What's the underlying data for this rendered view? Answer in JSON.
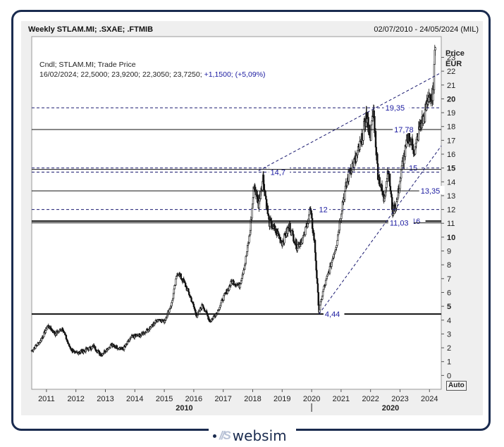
{
  "header": {
    "title": "Weekly STLAM.MI; .SXAE; .FTMIB",
    "date_range": "02/07/2010 - 24/05/2024 (MIL)"
  },
  "info": {
    "line1": "Cndl; STLAM.MI; Trade Price",
    "line2_values": "16/02/2024; 22,5000; 23,9200; 22,3050; 23,7250;",
    "line2_change": "+1,1500; (+5,09%)"
  },
  "axis": {
    "unit_line1": "Price",
    "unit_line2": "EUR",
    "auto_label": "Auto"
  },
  "logo": {
    "mark": "//S",
    "text": "websim"
  },
  "colors": {
    "frame": "#1a2b4f",
    "panel": "#efefef",
    "plot_bg": "#ffffff",
    "candles": "#111111",
    "annotation": "#1a1aa0"
  },
  "chart_data": {
    "type": "candlestick",
    "series_name": "STLAM.MI",
    "x_range": [
      2010.5,
      2024.4
    ],
    "ylim": [
      -1,
      24.5
    ],
    "y_ticks": [
      0,
      1,
      2,
      3,
      4,
      5,
      6,
      7,
      8,
      9,
      10,
      11,
      12,
      13,
      14,
      15,
      16,
      17,
      18,
      19,
      20,
      21,
      22,
      23
    ],
    "y_tick_labels": [
      "0",
      "1",
      "2",
      "3",
      "4",
      "5",
      "6",
      "7",
      "8",
      "9",
      "10",
      "11",
      "12",
      "13",
      "14",
      "15",
      "16",
      "17",
      "18",
      "19",
      "20",
      "21",
      "22",
      "23"
    ],
    "x_ticks": [
      2011,
      2012,
      2013,
      2014,
      2015,
      2016,
      2017,
      2018,
      2019,
      2020,
      2021,
      2022,
      2023,
      2024
    ],
    "x_tick_labels": [
      "2011",
      "2012",
      "2013",
      "2014",
      "2015",
      "2016",
      "2017",
      "2018",
      "2019",
      "2020",
      "2021",
      "2022",
      "2023",
      "2024"
    ],
    "decade_labels": [
      {
        "x": 2015.2,
        "label": "2010"
      },
      {
        "x": 2022.2,
        "label": "2020"
      }
    ],
    "anchors": [
      [
        2010.5,
        1.8
      ],
      [
        2010.8,
        2.5
      ],
      [
        2011.05,
        3.6
      ],
      [
        2011.3,
        3.0
      ],
      [
        2011.55,
        3.4
      ],
      [
        2011.75,
        2.2
      ],
      [
        2011.95,
        1.6
      ],
      [
        2012.3,
        1.8
      ],
      [
        2012.6,
        2.1
      ],
      [
        2012.85,
        1.5
      ],
      [
        2013.2,
        2.2
      ],
      [
        2013.6,
        1.9
      ],
      [
        2013.9,
        2.8
      ],
      [
        2014.2,
        2.9
      ],
      [
        2014.5,
        3.4
      ],
      [
        2014.8,
        4.1
      ],
      [
        2015.0,
        3.9
      ],
      [
        2015.25,
        5.2
      ],
      [
        2015.45,
        7.5
      ],
      [
        2015.7,
        6.6
      ],
      [
        2015.9,
        5.6
      ],
      [
        2016.1,
        4.3
      ],
      [
        2016.3,
        5.1
      ],
      [
        2016.55,
        3.9
      ],
      [
        2016.8,
        4.6
      ],
      [
        2017.0,
        5.6
      ],
      [
        2017.3,
        6.8
      ],
      [
        2017.55,
        6.5
      ],
      [
        2017.75,
        8.2
      ],
      [
        2017.9,
        10.2
      ],
      [
        2018.05,
        13.8
      ],
      [
        2018.2,
        12.4
      ],
      [
        2018.35,
        14.3
      ],
      [
        2018.55,
        11.1
      ],
      [
        2018.8,
        10.4
      ],
      [
        2019.0,
        9.6
      ],
      [
        2019.25,
        10.8
      ],
      [
        2019.5,
        9.3
      ],
      [
        2019.75,
        10.1
      ],
      [
        2019.95,
        12.0
      ],
      [
        2020.1,
        9.6
      ],
      [
        2020.25,
        4.6
      ],
      [
        2020.4,
        6.2
      ],
      [
        2020.6,
        7.6
      ],
      [
        2020.85,
        9.6
      ],
      [
        2021.05,
        12.5
      ],
      [
        2021.3,
        14.9
      ],
      [
        2021.5,
        15.6
      ],
      [
        2021.7,
        17.0
      ],
      [
        2021.85,
        18.7
      ],
      [
        2022.0,
        17.4
      ],
      [
        2022.1,
        19.1
      ],
      [
        2022.25,
        14.6
      ],
      [
        2022.45,
        12.7
      ],
      [
        2022.6,
        15.0
      ],
      [
        2022.75,
        11.8
      ],
      [
        2022.9,
        12.6
      ],
      [
        2023.1,
        15.5
      ],
      [
        2023.3,
        17.3
      ],
      [
        2023.5,
        16.2
      ],
      [
        2023.65,
        17.8
      ],
      [
        2023.85,
        18.9
      ],
      [
        2024.0,
        20.5
      ],
      [
        2024.1,
        19.6
      ],
      [
        2024.2,
        23.7
      ]
    ],
    "horizontal_levels": [
      {
        "y": 19.35,
        "label": "19,35",
        "style": "dashed",
        "label_x": 2022.5
      },
      {
        "y": 17.78,
        "label": "17,78",
        "style": "solid",
        "label_x": 2022.8
      },
      {
        "y": 15.0,
        "label": "15",
        "style": "dashed",
        "label_x": 2023.3
      },
      {
        "y": 14.7,
        "label": "14,7",
        "style": "dashed",
        "label_x": 2018.6
      },
      {
        "y": 14.9,
        "label": "",
        "style": "solid",
        "label_x": null
      },
      {
        "y": 13.35,
        "label": "13,35",
        "style": "solid",
        "label_x": 2023.7
      },
      {
        "y": 12.0,
        "label": "12",
        "style": "dashed",
        "label_x": 2020.25
      },
      {
        "y": 11.16,
        "label": "11,16",
        "style": "solid-bold",
        "label_x": 2023.05
      },
      {
        "y": 11.03,
        "label": "11,03",
        "style": "solid",
        "label_x": 2022.65
      },
      {
        "y": 4.44,
        "label": "4,44",
        "style": "solid-bold",
        "label_x": 2020.45
      }
    ],
    "trend_lines": [
      {
        "from": [
          2018.2,
          14.8
        ],
        "to": [
          2024.4,
          21.9
        ]
      },
      {
        "from": [
          2020.25,
          4.44
        ],
        "to": [
          2024.4,
          16.6
        ]
      }
    ]
  }
}
